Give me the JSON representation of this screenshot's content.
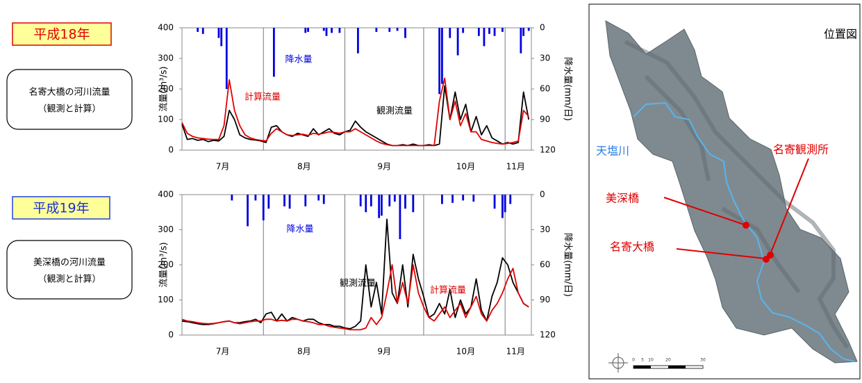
{
  "panels": [
    {
      "year": "平成18年",
      "caption": [
        "名寄大橋の河川流量",
        "（観測と計算）"
      ]
    },
    {
      "year": "平成19年",
      "caption": [
        "美深橋の河川流量",
        "（観測と計算）"
      ]
    }
  ],
  "chart_data": [
    {
      "type": "line",
      "xlim": [
        0,
        133
      ],
      "xticks": [
        {
          "value": 15.5,
          "label": "7月"
        },
        {
          "value": 46.5,
          "label": "8月"
        },
        {
          "value": 77,
          "label": "9月"
        },
        {
          "value": 108,
          "label": "10月"
        },
        {
          "value": 127,
          "label": "11月"
        }
      ],
      "xgrid": [
        31,
        62,
        92,
        123
      ],
      "ylim": [
        0,
        400
      ],
      "yticks": [
        0,
        100,
        200,
        300,
        400
      ],
      "y_label": "流量(m³/s)",
      "y2lim": [
        0,
        120
      ],
      "y2ticks": [
        0,
        30,
        60,
        90,
        120
      ],
      "y2_inverted": true,
      "y2_label": "降水量(mm/日)",
      "x": [
        0,
        2,
        4,
        6,
        8,
        10,
        12,
        14,
        16,
        18,
        20,
        22,
        24,
        26,
        28,
        30,
        32,
        34,
        36,
        38,
        40,
        42,
        44,
        46,
        48,
        50,
        52,
        54,
        56,
        58,
        60,
        62,
        64,
        66,
        68,
        70,
        72,
        74,
        76,
        78,
        80,
        82,
        84,
        86,
        88,
        90,
        92,
        94,
        96,
        98,
        100,
        102,
        104,
        106,
        108,
        110,
        112,
        114,
        116,
        118,
        120,
        122,
        124,
        126,
        128,
        130,
        132
      ],
      "series": [
        {
          "name": "観測流量",
          "color": "#000000",
          "values": [
            85,
            35,
            38,
            32,
            35,
            28,
            32,
            30,
            45,
            130,
            100,
            50,
            40,
            35,
            33,
            30,
            25,
            75,
            80,
            60,
            50,
            45,
            55,
            50,
            45,
            70,
            50,
            60,
            70,
            55,
            50,
            60,
            65,
            95,
            75,
            60,
            50,
            40,
            30,
            20,
            15,
            15,
            18,
            15,
            20,
            15,
            15,
            18,
            15,
            20,
            210,
            100,
            190,
            100,
            150,
            60,
            110,
            50,
            80,
            40,
            30,
            20,
            25,
            20,
            25,
            190,
            100
          ]
        },
        {
          "name": "計算流量",
          "color": "#e00000",
          "values": [
            90,
            55,
            45,
            40,
            38,
            36,
            35,
            35,
            80,
            230,
            130,
            80,
            50,
            40,
            35,
            32,
            30,
            55,
            70,
            60,
            50,
            48,
            50,
            52,
            48,
            55,
            52,
            55,
            60,
            58,
            55,
            60,
            60,
            70,
            60,
            50,
            40,
            30,
            22,
            18,
            15,
            15,
            15,
            15,
            15,
            15,
            15,
            15,
            15,
            160,
            235,
            100,
            160,
            80,
            120,
            60,
            60,
            35,
            30,
            25,
            22,
            20,
            22,
            25,
            30,
            130,
            110
          ]
        },
        {
          "name": "降水量",
          "color": "#0000e0",
          "axis": "y2",
          "style": "bar",
          "x": [
            6,
            8,
            14,
            15,
            17,
            35,
            47,
            48,
            54,
            55,
            57,
            60,
            67,
            74,
            79,
            82,
            85,
            98,
            99,
            102,
            105,
            107,
            113,
            115,
            117,
            119,
            122,
            129,
            130,
            132
          ],
          "values": [
            4,
            6,
            10,
            18,
            60,
            48,
            5,
            4,
            3,
            8,
            5,
            5,
            25,
            4,
            4,
            3,
            10,
            65,
            55,
            10,
            27,
            5,
            8,
            18,
            6,
            8,
            4,
            25,
            8,
            3
          ]
        }
      ]
    },
    {
      "type": "line",
      "xlim": [
        0,
        133
      ],
      "xticks": [
        {
          "value": 15.5,
          "label": "7月"
        },
        {
          "value": 46.5,
          "label": "8月"
        },
        {
          "value": 77,
          "label": "9月"
        },
        {
          "value": 108,
          "label": "10月"
        },
        {
          "value": 127,
          "label": "11月"
        }
      ],
      "xgrid": [
        31,
        62,
        92,
        123
      ],
      "ylim": [
        0,
        400
      ],
      "yticks": [
        0,
        100,
        200,
        300,
        400
      ],
      "y_label": "流量(m³/s)",
      "y2lim": [
        0,
        120
      ],
      "y2ticks": [
        0,
        30,
        60,
        90,
        120
      ],
      "y2_inverted": true,
      "y2_label": "降水量(mm/日)",
      "x": [
        0,
        2,
        4,
        6,
        8,
        10,
        12,
        14,
        16,
        18,
        20,
        22,
        24,
        26,
        28,
        30,
        32,
        34,
        36,
        38,
        40,
        42,
        44,
        46,
        48,
        50,
        52,
        54,
        56,
        58,
        60,
        62,
        64,
        66,
        68,
        70,
        72,
        74,
        76,
        78,
        80,
        82,
        84,
        86,
        88,
        90,
        92,
        94,
        96,
        98,
        100,
        102,
        104,
        106,
        108,
        110,
        112,
        114,
        116,
        118,
        120,
        122,
        124,
        126,
        128,
        130,
        132
      ],
      "series": [
        {
          "name": "観測流量",
          "color": "#000000",
          "values": [
            40,
            38,
            35,
            32,
            30,
            30,
            32,
            35,
            38,
            40,
            35,
            35,
            38,
            40,
            45,
            35,
            60,
            65,
            40,
            60,
            40,
            50,
            45,
            40,
            45,
            45,
            35,
            30,
            30,
            25,
            25,
            20,
            18,
            25,
            40,
            200,
            80,
            150,
            60,
            330,
            120,
            90,
            200,
            80,
            230,
            160,
            110,
            50,
            60,
            90,
            60,
            130,
            50,
            100,
            60,
            80,
            160,
            70,
            40,
            110,
            150,
            220,
            200,
            150,
            120,
            90,
            80
          ]
        },
        {
          "name": "計算流量",
          "color": "#e00000",
          "values": [
            45,
            40,
            38,
            35,
            33,
            32,
            33,
            35,
            38,
            40,
            35,
            32,
            35,
            38,
            40,
            40,
            45,
            45,
            40,
            42,
            40,
            45,
            45,
            40,
            38,
            35,
            30,
            30,
            25,
            22,
            20,
            18,
            15,
            15,
            15,
            20,
            50,
            30,
            50,
            120,
            200,
            90,
            150,
            90,
            200,
            120,
            80,
            50,
            40,
            60,
            80,
            50,
            70,
            90,
            50,
            80,
            110,
            60,
            40,
            70,
            90,
            120,
            160,
            190,
            120,
            90,
            80
          ]
        },
        {
          "name": "降水量",
          "color": "#0000e0",
          "axis": "y2",
          "style": "bar",
          "x": [
            19,
            25,
            28,
            31,
            33,
            39,
            41,
            47,
            52,
            54,
            68,
            70,
            72,
            75,
            76,
            79,
            81,
            83,
            85,
            88,
            99,
            103,
            107,
            111,
            119,
            122,
            123,
            125
          ],
          "values": [
            5,
            27,
            5,
            22,
            12,
            10,
            12,
            10,
            5,
            8,
            10,
            15,
            10,
            20,
            18,
            10,
            6,
            38,
            12,
            15,
            8,
            7,
            5,
            6,
            12,
            20,
            15,
            8
          ]
        }
      ]
    }
  ],
  "map": {
    "title": "位置図",
    "river": "天塩川",
    "stations": [
      "名寄観測所",
      "美深橋",
      "名寄大橋"
    ],
    "scale_labels": [
      "0",
      "5",
      "10",
      "20",
      "30"
    ]
  }
}
